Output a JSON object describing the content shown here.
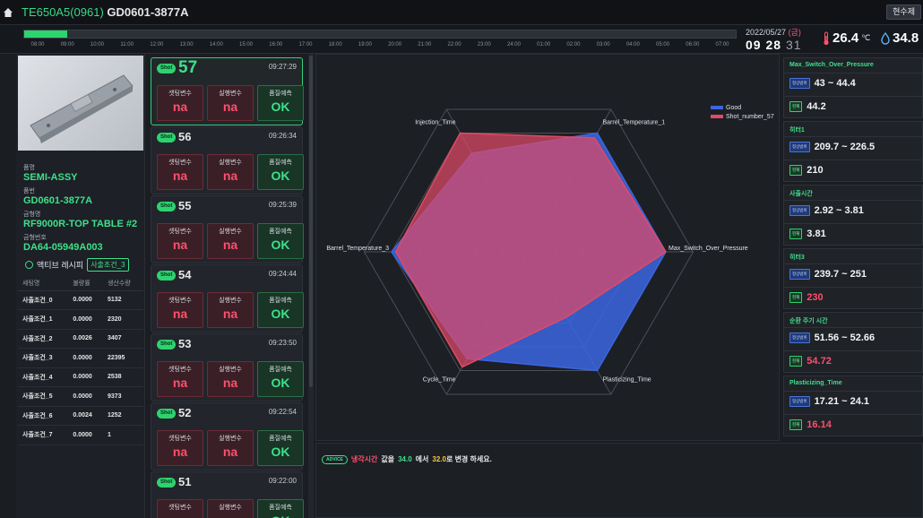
{
  "header": {
    "machine": "TE650A5(0961)",
    "part": "GD0601-3877A",
    "button": "현수제"
  },
  "timeline": {
    "progress": 0.06,
    "ticks": [
      "08:00",
      "09:00",
      "10:00",
      "11:00",
      "12:00",
      "13:00",
      "14:00",
      "15:00",
      "16:00",
      "17:00",
      "18:00",
      "19:00",
      "20:00",
      "21:00",
      "22:00",
      "23:00",
      "24:00",
      "01:00",
      "02:00",
      "03:00",
      "04:00",
      "05:00",
      "06:00",
      "07:00"
    ]
  },
  "datetime": {
    "date": "2022/05/27",
    "day": "(금)",
    "hm": "09 28",
    "sec": "31"
  },
  "env": {
    "temp": "26.4",
    "temp_unit": "℃",
    "humidity": "34.8"
  },
  "product": {
    "name_label": "품명",
    "name": "SEMI-ASSY",
    "no_label": "품번",
    "no": "GD0601-3877A",
    "mold_label": "금형명",
    "mold": "RF9000R-TOP TABLE #2",
    "moldno_label": "금형번호",
    "moldno": "DA64-05949A003"
  },
  "recipe": {
    "label": "액티브 레시피",
    "tag": "사출조건_3"
  },
  "recipe_table": {
    "headers": [
      "세팅명",
      "불량률",
      "생산수량"
    ],
    "rows": [
      [
        "사출조건_0",
        "0.0000",
        "5132"
      ],
      [
        "사출조건_1",
        "0.0000",
        "2320"
      ],
      [
        "사출조건_2",
        "0.0026",
        "3407"
      ],
      [
        "사출조건_3",
        "0.0000",
        "22395"
      ],
      [
        "사출조건_4",
        "0.0000",
        "2538"
      ],
      [
        "사출조건_5",
        "0.0000",
        "9373"
      ],
      [
        "사출조건_6",
        "0.0024",
        "1252"
      ],
      [
        "사출조건_7",
        "0.0000",
        "1"
      ]
    ]
  },
  "shots": {
    "badge": "Shot",
    "box_labels": [
      "셋팅변수",
      "실행변수",
      "품질예측"
    ],
    "items": [
      {
        "num": "57",
        "time": "09:27:29",
        "v1": "na",
        "v2": "na",
        "v3": "OK"
      },
      {
        "num": "56",
        "time": "09:26:34",
        "v1": "na",
        "v2": "na",
        "v3": "OK"
      },
      {
        "num": "55",
        "time": "09:25:39",
        "v1": "na",
        "v2": "na",
        "v3": "OK"
      },
      {
        "num": "54",
        "time": "09:24:44",
        "v1": "na",
        "v2": "na",
        "v3": "OK"
      },
      {
        "num": "53",
        "time": "09:23:50",
        "v1": "na",
        "v2": "na",
        "v3": "OK"
      },
      {
        "num": "52",
        "time": "09:22:54",
        "v1": "na",
        "v2": "na",
        "v3": "OK"
      },
      {
        "num": "51",
        "time": "09:22:00",
        "v1": "na",
        "v2": "na",
        "v3": "OK"
      }
    ]
  },
  "chart_data": {
    "type": "radar",
    "axes": [
      "Injection_Time",
      "Barrel_Temperature_1",
      "Max_Switch_Over_Pressure",
      "Plasticizing_Time",
      "Cycle_Time",
      "Barrel_Temperature_3"
    ],
    "series": [
      {
        "name": "Good",
        "color": "#3b66e0",
        "values": [
          0.83,
          1.0,
          1.0,
          1.0,
          0.9,
          1.0
        ]
      },
      {
        "name": "Shot_number_57",
        "color": "#e04a66",
        "values": [
          1.0,
          0.96,
          1.0,
          0.55,
          0.97,
          0.97
        ]
      }
    ],
    "rmax": 1.0,
    "rings": 5,
    "legend": "top-right"
  },
  "advice": {
    "tag": "ADVICE",
    "item": "냉각시간",
    "t1": "값을",
    "from": "34.0",
    "t2": "에서",
    "to": "32.0",
    "t3": "로 변경 하세요."
  },
  "params": {
    "range_tag": "정상범위",
    "cur_tag": "현재",
    "items": [
      {
        "title": "Max_Switch_Over_Pressure",
        "range": "43 ~ 44.4",
        "current": "44.2",
        "bad": false
      },
      {
        "title": "히터1",
        "range": "209.7 ~ 226.5",
        "current": "210",
        "bad": false
      },
      {
        "title": "사출시간",
        "range": "2.92 ~ 3.81",
        "current": "3.81",
        "bad": false
      },
      {
        "title": "히터3",
        "range": "239.7 ~ 251",
        "current": "230",
        "bad": true
      },
      {
        "title": "순환 주기 시간",
        "range": "51.56 ~ 52.66",
        "current": "54.72",
        "bad": true
      },
      {
        "title": "Plasticizing_Time",
        "range": "17.21 ~ 24.1",
        "current": "16.14",
        "bad": true
      }
    ]
  }
}
